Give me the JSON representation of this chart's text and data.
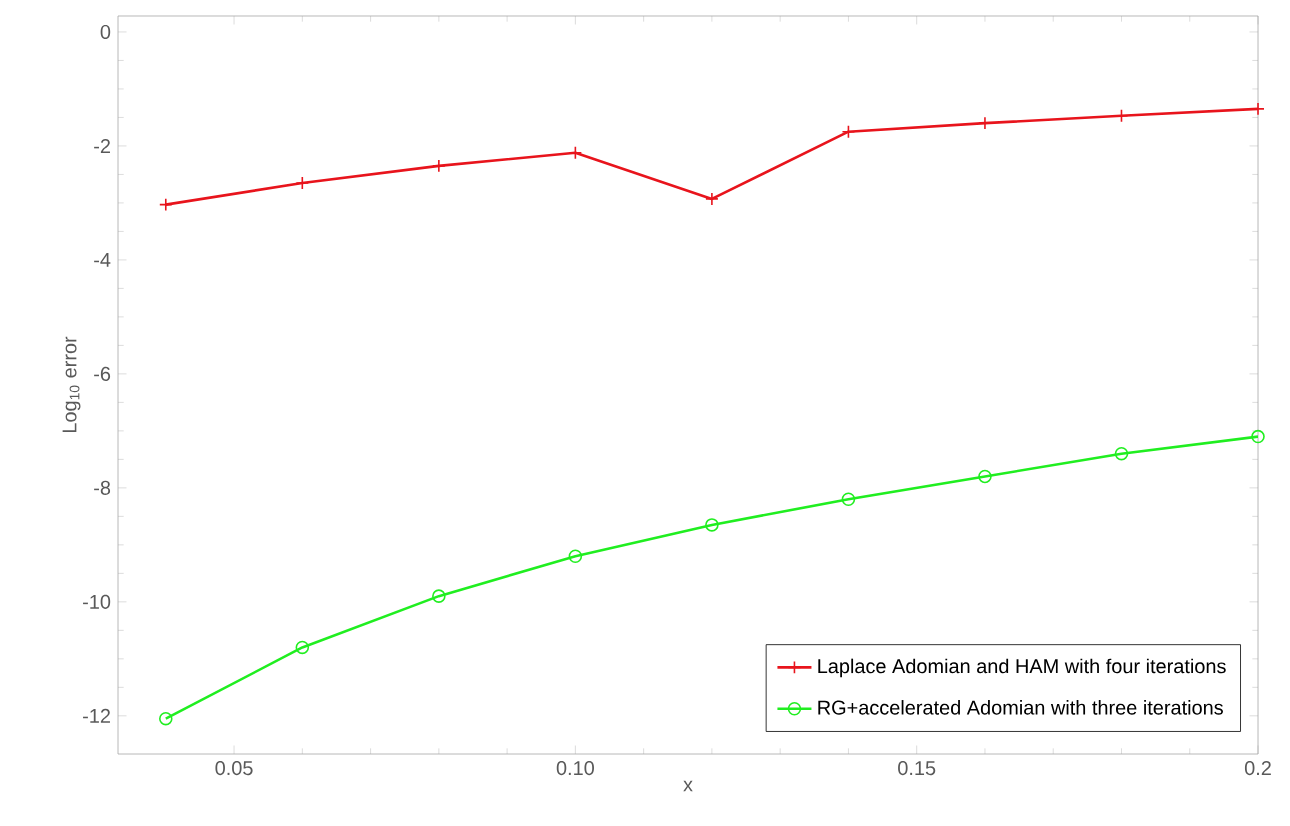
{
  "chart_data": {
    "type": "line",
    "xlabel": "x",
    "ylabel": "Log$_{10}$ error",
    "x": [
      0.04,
      0.06,
      0.08,
      0.1,
      0.12,
      0.14,
      0.16,
      0.18,
      0.2
    ],
    "series": [
      {
        "name": "Laplace Adomian and HAM with four iterations",
        "color": "#e8141c",
        "marker": "cross",
        "values": [
          -3.03,
          -2.65,
          -2.35,
          -2.12,
          -2.93,
          -1.75,
          -1.6,
          -1.47,
          -1.35
        ]
      },
      {
        "name": "RG+accelerated Adomian with three iterations",
        "color": "#20ee20",
        "marker": "circle",
        "values": [
          -12.05,
          -10.8,
          -9.9,
          -9.2,
          -8.65,
          -8.2,
          -7.8,
          -7.4,
          -7.1
        ]
      }
    ],
    "xlim": [
      0.033,
      0.2
    ],
    "ylim": [
      -12.67,
      0.28
    ],
    "xticks": [
      0.05,
      {
        "value": 0.1,
        "label": "0.10"
      },
      0.15,
      0.2
    ],
    "yticks": [
      0,
      -2,
      -4,
      -6,
      -8,
      -10,
      -12
    ],
    "grid": false,
    "legend": "bottom right",
    "line_style": "solid"
  }
}
